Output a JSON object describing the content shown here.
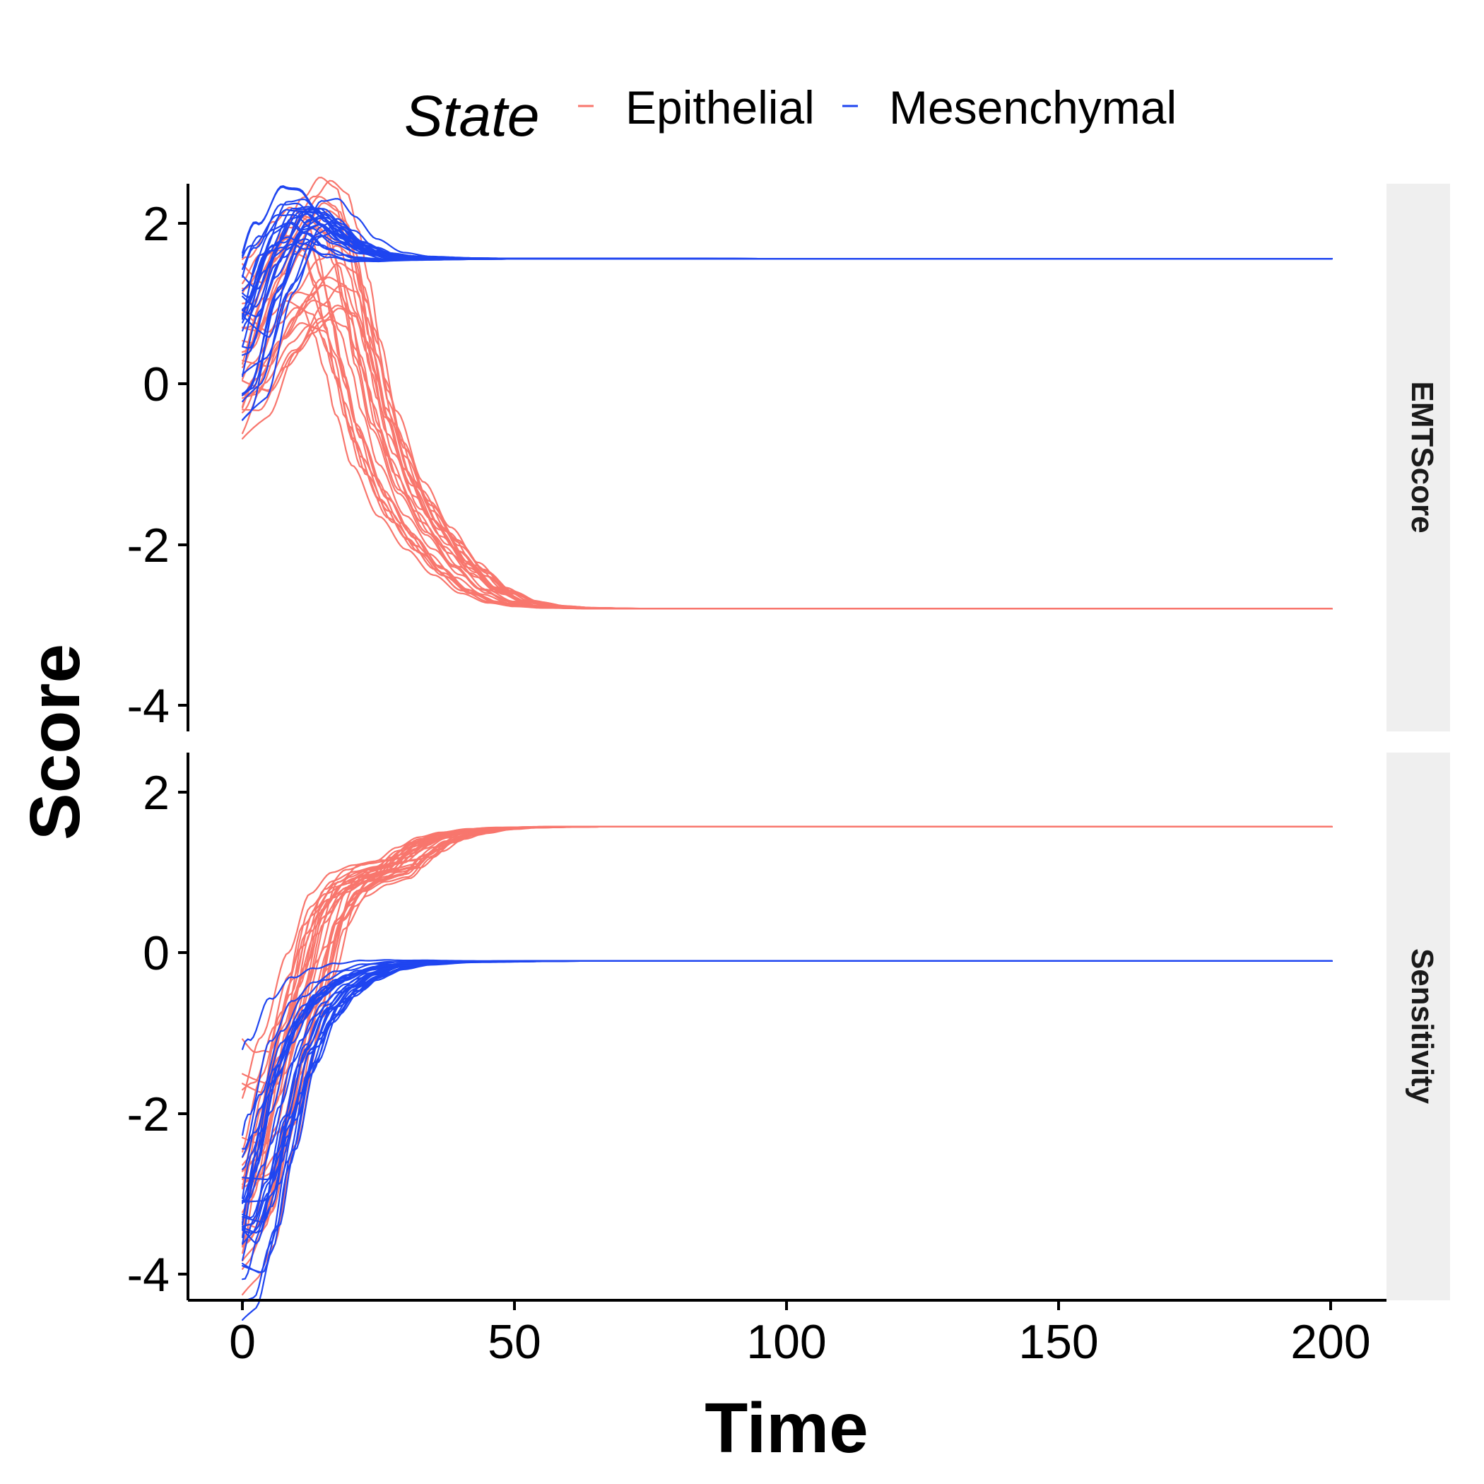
{
  "chart_data": {
    "type": "line",
    "xlabel": "Time",
    "ylabel": "Score",
    "x_ticks": [
      "0",
      "50",
      "100",
      "150",
      "200"
    ],
    "xlim": [
      -10,
      210
    ],
    "legend": {
      "title": "State",
      "position": "top",
      "entries": [
        {
          "name": "Epithelial",
          "color": "#F8766D"
        },
        {
          "name": "Mesenchymal",
          "color": "#1F45F0"
        }
      ]
    },
    "facets": [
      {
        "label": "EMTScore",
        "y_ticks": [
          "2",
          "0",
          "-2",
          "-4"
        ],
        "ylim": [
          -4.15,
          2.5
        ],
        "series": [
          {
            "name": "Epithelial",
            "color": "#F8766D",
            "trajectory_count": 28,
            "template": [
              [
                0,
                0.2
              ],
              [
                5,
                0.85
              ],
              [
                10,
                1.35
              ],
              [
                13,
                1.55
              ],
              [
                16,
                1.45
              ],
              [
                18,
                1.1
              ],
              [
                20,
                0.6
              ],
              [
                22,
                0.0
              ],
              [
                25,
                -0.7
              ],
              [
                30,
                -1.4
              ],
              [
                35,
                -1.85
              ],
              [
                40,
                -2.2
              ],
              [
                45,
                -2.45
              ],
              [
                50,
                -2.58
              ],
              [
                55,
                -2.63
              ],
              [
                60,
                -2.65
              ],
              [
                70,
                -2.66
              ],
              [
                100,
                -2.66
              ],
              [
                150,
                -2.66
              ],
              [
                200,
                -2.66
              ]
            ]
          },
          {
            "name": "Mesenchymal",
            "color": "#1F45F0",
            "trajectory_count": 28,
            "template": [
              [
                0,
                0.5
              ],
              [
                5,
                1.45
              ],
              [
                10,
                2.05
              ],
              [
                13,
                2.1
              ],
              [
                16,
                1.95
              ],
              [
                20,
                1.75
              ],
              [
                25,
                1.63
              ],
              [
                30,
                1.6
              ],
              [
                40,
                1.59
              ],
              [
                60,
                1.59
              ],
              [
                100,
                1.59
              ],
              [
                150,
                1.59
              ],
              [
                200,
                1.59
              ]
            ]
          }
        ]
      },
      {
        "label": "Sensitivity",
        "y_ticks": [
          "2",
          "0",
          "-2",
          "-4"
        ],
        "ylim": [
          -4.15,
          2.5
        ],
        "series": [
          {
            "name": "Epithelial",
            "color": "#F8766D",
            "trajectory_count": 28,
            "template": [
              [
                0,
                -2.5
              ],
              [
                3,
                -2.3
              ],
              [
                7,
                -1.4
              ],
              [
                12,
                -0.2
              ],
              [
                16,
                0.65
              ],
              [
                20,
                0.95
              ],
              [
                24,
                1.05
              ],
              [
                28,
                1.1
              ],
              [
                32,
                1.3
              ],
              [
                36,
                1.45
              ],
              [
                40,
                1.52
              ],
              [
                45,
                1.57
              ],
              [
                50,
                1.59
              ],
              [
                60,
                1.6
              ],
              [
                100,
                1.6
              ],
              [
                150,
                1.6
              ],
              [
                200,
                1.6
              ]
            ]
          },
          {
            "name": "Mesenchymal",
            "color": "#1F45F0",
            "trajectory_count": 28,
            "template": [
              [
                0,
                -3.3
              ],
              [
                3,
                -2.8
              ],
              [
                6,
                -2.0
              ],
              [
                10,
                -1.1
              ],
              [
                14,
                -0.6
              ],
              [
                18,
                -0.35
              ],
              [
                22,
                -0.2
              ],
              [
                27,
                -0.1
              ],
              [
                32,
                -0.06
              ],
              [
                40,
                -0.04
              ],
              [
                60,
                -0.03
              ],
              [
                100,
                -0.03
              ],
              [
                150,
                -0.03
              ],
              [
                200,
                -0.03
              ]
            ]
          }
        ]
      }
    ]
  }
}
